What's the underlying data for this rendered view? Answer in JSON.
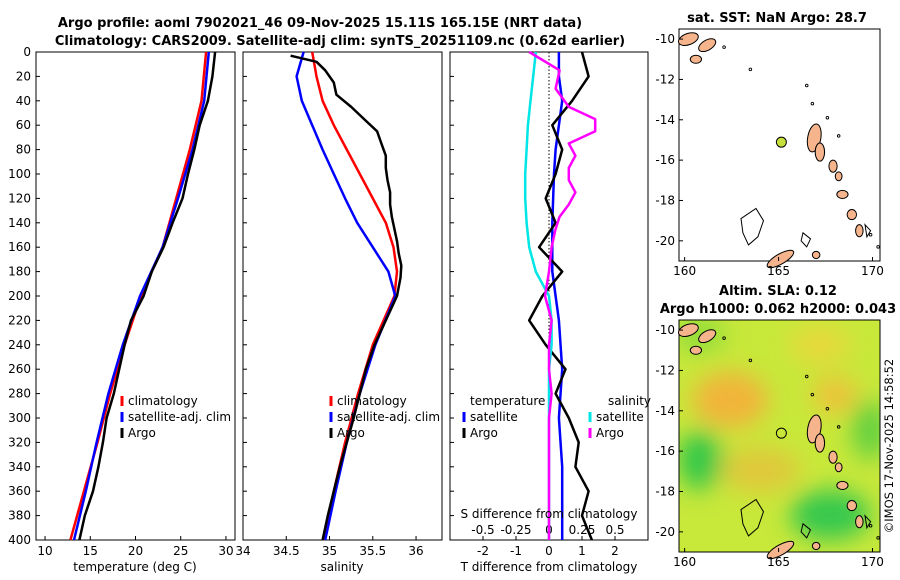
{
  "chart_data": [
    {
      "type": "line",
      "id": "temperature",
      "xlabel": "temperature (deg C)",
      "xlim": [
        9,
        31
      ],
      "ylim": [
        0,
        400
      ],
      "xticks": [
        "10",
        "15",
        "20",
        "25",
        "30"
      ],
      "yticks": [
        "0",
        "20",
        "40",
        "60",
        "80",
        "100",
        "120",
        "140",
        "160",
        "180",
        "200",
        "220",
        "240",
        "260",
        "280",
        "300",
        "320",
        "340",
        "360",
        "380",
        "400"
      ],
      "legend": [
        "climatology",
        "satellite-adj. clim",
        "Argo"
      ],
      "series": [
        {
          "name": "climatology",
          "color": "#ff0000",
          "depth": [
            0,
            40,
            80,
            120,
            160,
            200,
            240,
            280,
            320,
            360,
            400
          ],
          "values": [
            27.8,
            27.3,
            26.0,
            24.5,
            23.0,
            20.6,
            18.8,
            17.2,
            15.8,
            14.3,
            12.8
          ]
        },
        {
          "name": "satellite-adj. clim",
          "color": "#0000ff",
          "depth": [
            0,
            40,
            80,
            120,
            160,
            200,
            240,
            280,
            320,
            360,
            400
          ],
          "values": [
            28.1,
            27.6,
            26.3,
            24.7,
            23.0,
            20.5,
            18.6,
            17.0,
            15.7,
            14.5,
            13.2
          ]
        },
        {
          "name": "Argo",
          "color": "#000000",
          "depth": [
            0,
            20,
            40,
            60,
            80,
            100,
            120,
            140,
            160,
            180,
            200,
            220,
            240,
            260,
            280,
            300,
            320,
            340,
            360,
            380,
            400
          ],
          "values": [
            28.8,
            28.5,
            28.0,
            27.1,
            26.5,
            25.8,
            25.2,
            24.1,
            23.1,
            21.8,
            20.9,
            19.5,
            18.8,
            18.2,
            17.6,
            16.8,
            16.4,
            15.9,
            15.3,
            14.4,
            13.8
          ]
        }
      ]
    },
    {
      "type": "line",
      "id": "salinity",
      "xlabel": "salinity",
      "xlim": [
        34,
        36.3
      ],
      "ylim": [
        0,
        400
      ],
      "xticks": [
        "34",
        "34.5",
        "35",
        "35.5",
        "36"
      ],
      "legend": [
        "climatology",
        "satellite-adj. clim",
        "Argo"
      ],
      "series": [
        {
          "name": "climatology",
          "color": "#ff0000",
          "depth": [
            0,
            20,
            40,
            60,
            80,
            100,
            120,
            140,
            160,
            180,
            200,
            240,
            280,
            320,
            360,
            400
          ],
          "values": [
            34.8,
            34.85,
            34.92,
            35.05,
            35.2,
            35.35,
            35.5,
            35.65,
            35.74,
            35.78,
            35.75,
            35.5,
            35.33,
            35.18,
            35.05,
            34.93
          ]
        },
        {
          "name": "satellite-adj. clim",
          "color": "#0000ff",
          "depth": [
            0,
            20,
            40,
            60,
            80,
            100,
            120,
            140,
            160,
            180,
            200,
            240,
            280,
            320,
            360,
            400
          ],
          "values": [
            34.7,
            34.62,
            34.68,
            34.8,
            34.92,
            35.05,
            35.18,
            35.32,
            35.5,
            35.68,
            35.76,
            35.53,
            35.35,
            35.2,
            35.07,
            34.95
          ]
        },
        {
          "name": "Argo",
          "color": "#000000",
          "depth": [
            3,
            8,
            15,
            25,
            35,
            45,
            55,
            65,
            75,
            85,
            95,
            105,
            115,
            125,
            135,
            145,
            155,
            165,
            175,
            185,
            200,
            220,
            240,
            260,
            280,
            300,
            320,
            340,
            360,
            380,
            400
          ],
          "values": [
            34.55,
            34.85,
            34.95,
            35.05,
            35.08,
            35.25,
            35.4,
            35.55,
            35.6,
            35.65,
            35.65,
            35.67,
            35.7,
            35.7,
            35.72,
            35.75,
            35.78,
            35.8,
            35.83,
            35.82,
            35.78,
            35.65,
            35.52,
            35.42,
            35.35,
            35.28,
            35.2,
            35.12,
            35.05,
            34.98,
            34.92
          ]
        }
      ]
    },
    {
      "type": "line",
      "id": "differences",
      "xlabel": "T difference from climatology",
      "xlabel_top": "S difference from climatology",
      "xlim_T": [
        -3,
        3
      ],
      "xticks_T": [
        "-2",
        "-1",
        "0",
        "1",
        "2"
      ],
      "xlim_S": [
        -0.75,
        0.75
      ],
      "xticks_S": [
        "-0.5",
        "-0.25",
        "0",
        "0.25",
        "0.5"
      ],
      "legend_temperature": {
        "title": "temperature",
        "items": [
          "satellite",
          "Argo"
        ]
      },
      "legend_salinity": {
        "title": "salinity",
        "items": [
          "satellite",
          "Argo"
        ]
      },
      "series": [
        {
          "name": "temperature satellite",
          "color": "#0000ff",
          "axis": "T",
          "depth": [
            0,
            20,
            40,
            60,
            80,
            100,
            140,
            180,
            220,
            260,
            300,
            340,
            380,
            400
          ],
          "values": [
            0.3,
            0.3,
            0.4,
            0.3,
            0.2,
            0.15,
            0.1,
            0.1,
            0.3,
            0.4,
            0.3,
            0.4,
            0.4,
            0.4
          ]
        },
        {
          "name": "temperature Argo",
          "color": "#000000",
          "axis": "T",
          "depth": [
            0,
            20,
            40,
            60,
            80,
            100,
            120,
            140,
            160,
            180,
            200,
            220,
            240,
            260,
            280,
            300,
            320,
            340,
            360,
            380,
            400
          ],
          "values": [
            1.0,
            1.2,
            0.7,
            0.1,
            0.4,
            0.2,
            -0.1,
            0.2,
            -0.3,
            0.4,
            -0.2,
            -0.6,
            -0.1,
            0.5,
            0.2,
            0.6,
            0.9,
            0.8,
            1.2,
            1.0,
            1.3
          ]
        },
        {
          "name": "salinity satellite",
          "color": "#00e5e5",
          "axis": "S",
          "depth": [
            0,
            20,
            40,
            60,
            80,
            100,
            120,
            140,
            160,
            180,
            200,
            220,
            240,
            260,
            280,
            300,
            320,
            340,
            360,
            380,
            400
          ],
          "values": [
            -0.1,
            -0.12,
            -0.14,
            -0.16,
            -0.17,
            -0.18,
            -0.18,
            -0.17,
            -0.15,
            -0.1,
            0.0,
            0.02,
            0.02,
            0.0,
            0.0,
            0.0,
            0.0,
            0.0,
            0.0,
            0.0,
            0.0
          ]
        },
        {
          "name": "salinity Argo",
          "color": "#ff00ff",
          "axis": "S",
          "depth": [
            0,
            15,
            30,
            45,
            55,
            65,
            75,
            85,
            95,
            105,
            115,
            125,
            135,
            145,
            160,
            180,
            200,
            220,
            240,
            260,
            280,
            300,
            320,
            340,
            360,
            380,
            400
          ],
          "values": [
            -0.15,
            0.08,
            0.05,
            0.15,
            0.35,
            0.35,
            0.15,
            0.2,
            0.15,
            0.15,
            0.2,
            0.15,
            0.08,
            0.05,
            0.02,
            0.0,
            -0.03,
            0.02,
            0.0,
            0.0,
            0.02,
            0.0,
            0.0,
            0.0,
            0.0,
            0.0,
            0.0
          ]
        }
      ]
    },
    {
      "type": "map",
      "id": "sst_map",
      "title": "sat. SST: NaN Argo: 28.7",
      "xlim": [
        159.7,
        170.4
      ],
      "ylim": [
        -21,
        -9.5
      ],
      "xticks": [
        "160",
        "165",
        "170"
      ],
      "yticks": [
        "-10",
        "-12",
        "-14",
        "-16",
        "-18",
        "-20"
      ],
      "argo_lon": 165.15,
      "argo_lat": -15.11,
      "marker_color": "#c8e03c"
    },
    {
      "type": "map",
      "id": "sla_map",
      "title_line1": "Altim. SLA: 0.12",
      "title_line2": "Argo h1000: 0.062 h2000: 0.043",
      "xlim": [
        159.7,
        170.4
      ],
      "ylim": [
        -21,
        -9.5
      ],
      "xticks": [
        "160",
        "165",
        "170"
      ],
      "yticks": [
        "-10",
        "-12",
        "-14",
        "-16",
        "-18",
        "-20"
      ],
      "argo_lon": 165.15,
      "argo_lat": -15.11
    }
  ],
  "title": {
    "line1": "Argo profile: aoml 7902021_46 09-Nov-2025 15.11S 165.15E (NRT data)",
    "line2": "Climatology: CARS2009. Satellite-adj clim: synTS_20251109.nc (0.62d earlier)"
  },
  "stamp": "©IMOS 17-Nov-2025 14:58:52",
  "colors": {
    "climatology": "#ff0000",
    "satellite": "#0000ff",
    "argo": "#000000",
    "sal_satellite": "#00e5e5",
    "sal_argo": "#ff00ff",
    "land": "#f5b48c"
  }
}
